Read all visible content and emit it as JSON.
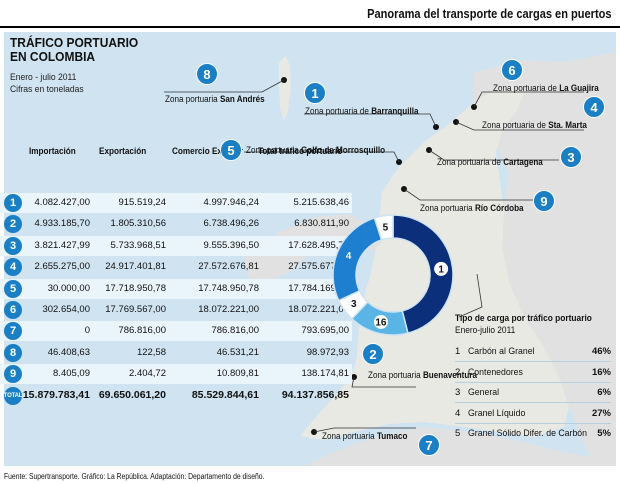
{
  "header": {
    "title": "Panorama del transporte de cargas en puertos"
  },
  "info": {
    "title_line1": "TRÁFICO PORTUARIO",
    "title_line2": "EN COLOMBIA",
    "period": "Enero - julio 2011",
    "units": "Cifras en toneladas"
  },
  "table": {
    "headers": [
      "Importación",
      "Exportación",
      "Comercio Exterior",
      "Total tráfico portuario"
    ],
    "rows": [
      {
        "badge": "1",
        "values": [
          "4.082.427,00",
          "915.519,24",
          "4.997.946,24",
          "5.215.638,46"
        ]
      },
      {
        "badge": "2",
        "values": [
          "4.933.185,70",
          "1.805.310,56",
          "6.738.496,26",
          "6.830.811,90"
        ]
      },
      {
        "badge": "3",
        "values": [
          "3.821.427,99",
          "5.733.968,51",
          "9.555.396,50",
          "17.628.495,77"
        ]
      },
      {
        "badge": "4",
        "values": [
          "2.655.275,00",
          "24.917.401,81",
          "27.572.676,81",
          "27.575.677,81"
        ]
      },
      {
        "badge": "5",
        "values": [
          "30.000,00",
          "17.718.950,78",
          "17.748.950,78",
          "17.784.169,17"
        ]
      },
      {
        "badge": "6",
        "values": [
          "302.654,00",
          "17.769.567,00",
          "18.072.221,00",
          "18.072.221,00"
        ]
      },
      {
        "badge": "7",
        "values": [
          "0",
          "786.816,00",
          "786.816,00",
          "793.695,00"
        ]
      },
      {
        "badge": "8",
        "values": [
          "46.408,63",
          "122,58",
          "46.531,21",
          "98.972,93"
        ]
      },
      {
        "badge": "9",
        "values": [
          "8.405,09",
          "2.404,72",
          "10.809,81",
          "138.174,81"
        ]
      }
    ],
    "total": {
      "badge": "TOTAL",
      "values": [
        "15.879.783,41",
        "69.650.061,20",
        "85.529.844,61",
        "94.137.856,85"
      ]
    }
  },
  "zones": [
    {
      "num": "8",
      "prefix": "Zona portuaria ",
      "name": "San Andrés"
    },
    {
      "num": "1",
      "prefix": "Zona portuaria de ",
      "name": "Barranquilla"
    },
    {
      "num": "6",
      "prefix": "Zona portuaria de ",
      "name": "La Guajira"
    },
    {
      "num": "4",
      "prefix": "Zona portuaria de ",
      "name": "Sta. Marta"
    },
    {
      "num": "5",
      "prefix": "Zona portuaria ",
      "name": "Golfo de Morrosquillo"
    },
    {
      "num": "3",
      "prefix": "Zona portuaria de ",
      "name": "Cartagena"
    },
    {
      "num": "9",
      "prefix": "Zona portuaria ",
      "name": "Río Córdoba"
    },
    {
      "num": "2",
      "prefix": "Zona portuaria ",
      "name": "Buenaventura"
    },
    {
      "num": "7",
      "prefix": "Zona portuaria ",
      "name": "Tumaco"
    }
  ],
  "chart_data": {
    "type": "pie",
    "title": "Tipo de carga por tráfico portuario",
    "subtitle": "Enero-julio 2011",
    "categories": [
      "Carbón al Granel",
      "Contenedores",
      "General",
      "Granel Líquido",
      "Granel Sólido Difer. de Carbón"
    ],
    "values": [
      46,
      16,
      6,
      27,
      5
    ],
    "unit": "%",
    "slice_labels": [
      "1",
      "16",
      "3",
      "4",
      "5"
    ],
    "colors": [
      "#0b2f7a",
      "#5ab4e6",
      "#ffffff",
      "#1e7fd0",
      "#ffffff"
    ],
    "legend_placement": "right"
  },
  "source": "Fuente: Supertransporte. Gráfico: La República. Adaptación: Departamento de diseño."
}
